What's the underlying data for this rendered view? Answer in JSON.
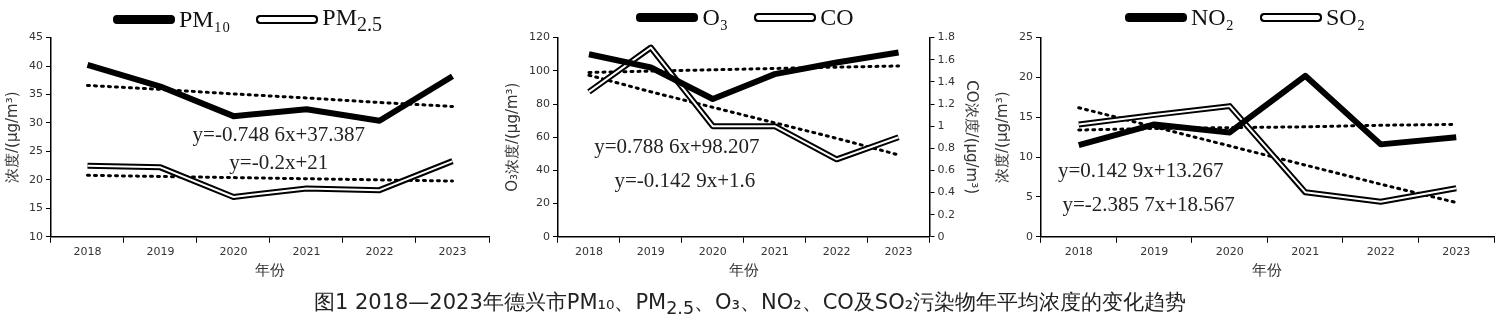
{
  "chart_data": [
    {
      "type": "line",
      "categories": [
        "2018",
        "2019",
        "2020",
        "2021",
        "2022",
        "2023"
      ],
      "xlabel": "年份",
      "ylabel": "浓度/(μg/m³)",
      "ylim": [
        10,
        45
      ],
      "yticks": [
        10,
        15,
        20,
        25,
        30,
        35,
        40,
        45
      ],
      "grid": false,
      "legend": "top",
      "marker": "none",
      "line_style": "solid",
      "series": [
        {
          "name": "PM₁₀",
          "color": "#000000",
          "values": [
            40.2,
            36.4,
            31.2,
            32.4,
            30.4,
            38.2
          ]
        },
        {
          "name": "PM$_{2.5}$",
          "color": "#000000",
          "values": [
            22.5,
            22.2,
            17,
            18.5,
            18.2,
            23.3
          ]
        },
        {
          "type": "line",
          "line_style": "dotted",
          "color": "#000000",
          "values": [
            36.6,
            35.9,
            35.1,
            34.4,
            33.6,
            32.9
          ]
        },
        {
          "type": "line",
          "line_style": "dotted",
          "color": "#000000",
          "values": [
            20.8,
            20.6,
            20.4,
            20.2,
            20,
            19.8
          ]
        }
      ],
      "annotations": [
        "y=-0.748 6x+37.387",
        "y=-0.2x+21",
        "图1 2018—2023年德兴市PM₁₀、PM$_{2.5}$、O₃、NO₂、CO及SO₂污染物年平均浓度的变化趋势"
      ]
    },
    {
      "type": "line",
      "categories": [
        "2018",
        "2019",
        "2020",
        "2021",
        "2022",
        "2023"
      ],
      "xlabel": "年份",
      "ylabel": "O₃浓度/(μg/m³)",
      "y2label": "CO浓度/(μg/m³)",
      "ylim": [
        0,
        120
      ],
      "yticks": [
        0,
        20,
        40,
        60,
        80,
        100,
        120
      ],
      "y2lim": [
        0,
        1.8
      ],
      "y2ticks": [
        0,
        0.2,
        0.4,
        0.6,
        0.8,
        1,
        1.2,
        1.4,
        1.6,
        1.8
      ],
      "grid": false,
      "legend": "top",
      "marker": "none",
      "line_style": "solid",
      "series": [
        {
          "name": "O₃",
          "color": "#000000",
          "values": [
            110,
            102,
            83,
            98,
            105,
            111
          ]
        },
        {
          "name": "CO",
          "color": "#000000",
          "axis": "y2",
          "values": [
            1.31,
            1.71,
            1.0,
            1.0,
            0.7,
            0.9
          ]
        },
        {
          "type": "line",
          "line_style": "dotted",
          "color": "#000000",
          "values": [
            99,
            99.8,
            100.6,
            101.4,
            102.2,
            102.9
          ]
        },
        {
          "type": "line",
          "line_style": "dotted",
          "color": "#000000",
          "axis": "y2",
          "values": [
            1.46,
            1.31,
            1.17,
            1.03,
            0.89,
            0.74
          ]
        }
      ],
      "annotations": [
        "y=0.788 6x+98.207",
        "y=-0.142 9x+1.6"
      ]
    },
    {
      "type": "line",
      "categories": [
        "2018",
        "2019",
        "2020",
        "2021",
        "2022",
        "2023"
      ],
      "xlabel": "年份",
      "ylabel": "浓度/(μg/m³)",
      "ylim": [
        0,
        25
      ],
      "yticks": [
        0,
        5,
        10,
        15,
        20,
        25
      ],
      "grid": false,
      "legend": "top",
      "marker": "none",
      "line_style": "solid",
      "series": [
        {
          "name": "NO₂",
          "color": "#000000",
          "values": [
            11.5,
            14.1,
            13.1,
            20.2,
            11.6,
            12.5
          ]
        },
        {
          "name": "SO₂",
          "color": "#000000",
          "values": [
            14.1,
            15.3,
            16.4,
            5.6,
            4.4,
            6.1
          ]
        },
        {
          "type": "line",
          "line_style": "dotted",
          "color": "#000000",
          "values": [
            13.4,
            13.6,
            13.7,
            13.8,
            14,
            14.1
          ]
        },
        {
          "type": "line",
          "line_style": "dotted",
          "color": "#000000",
          "values": [
            16.2,
            13.8,
            11.4,
            9,
            6.6,
            4.3
          ]
        }
      ],
      "annotations": [
        "y=0.142 9x+13.267",
        "y=-2.385 7x+18.567"
      ]
    }
  ]
}
